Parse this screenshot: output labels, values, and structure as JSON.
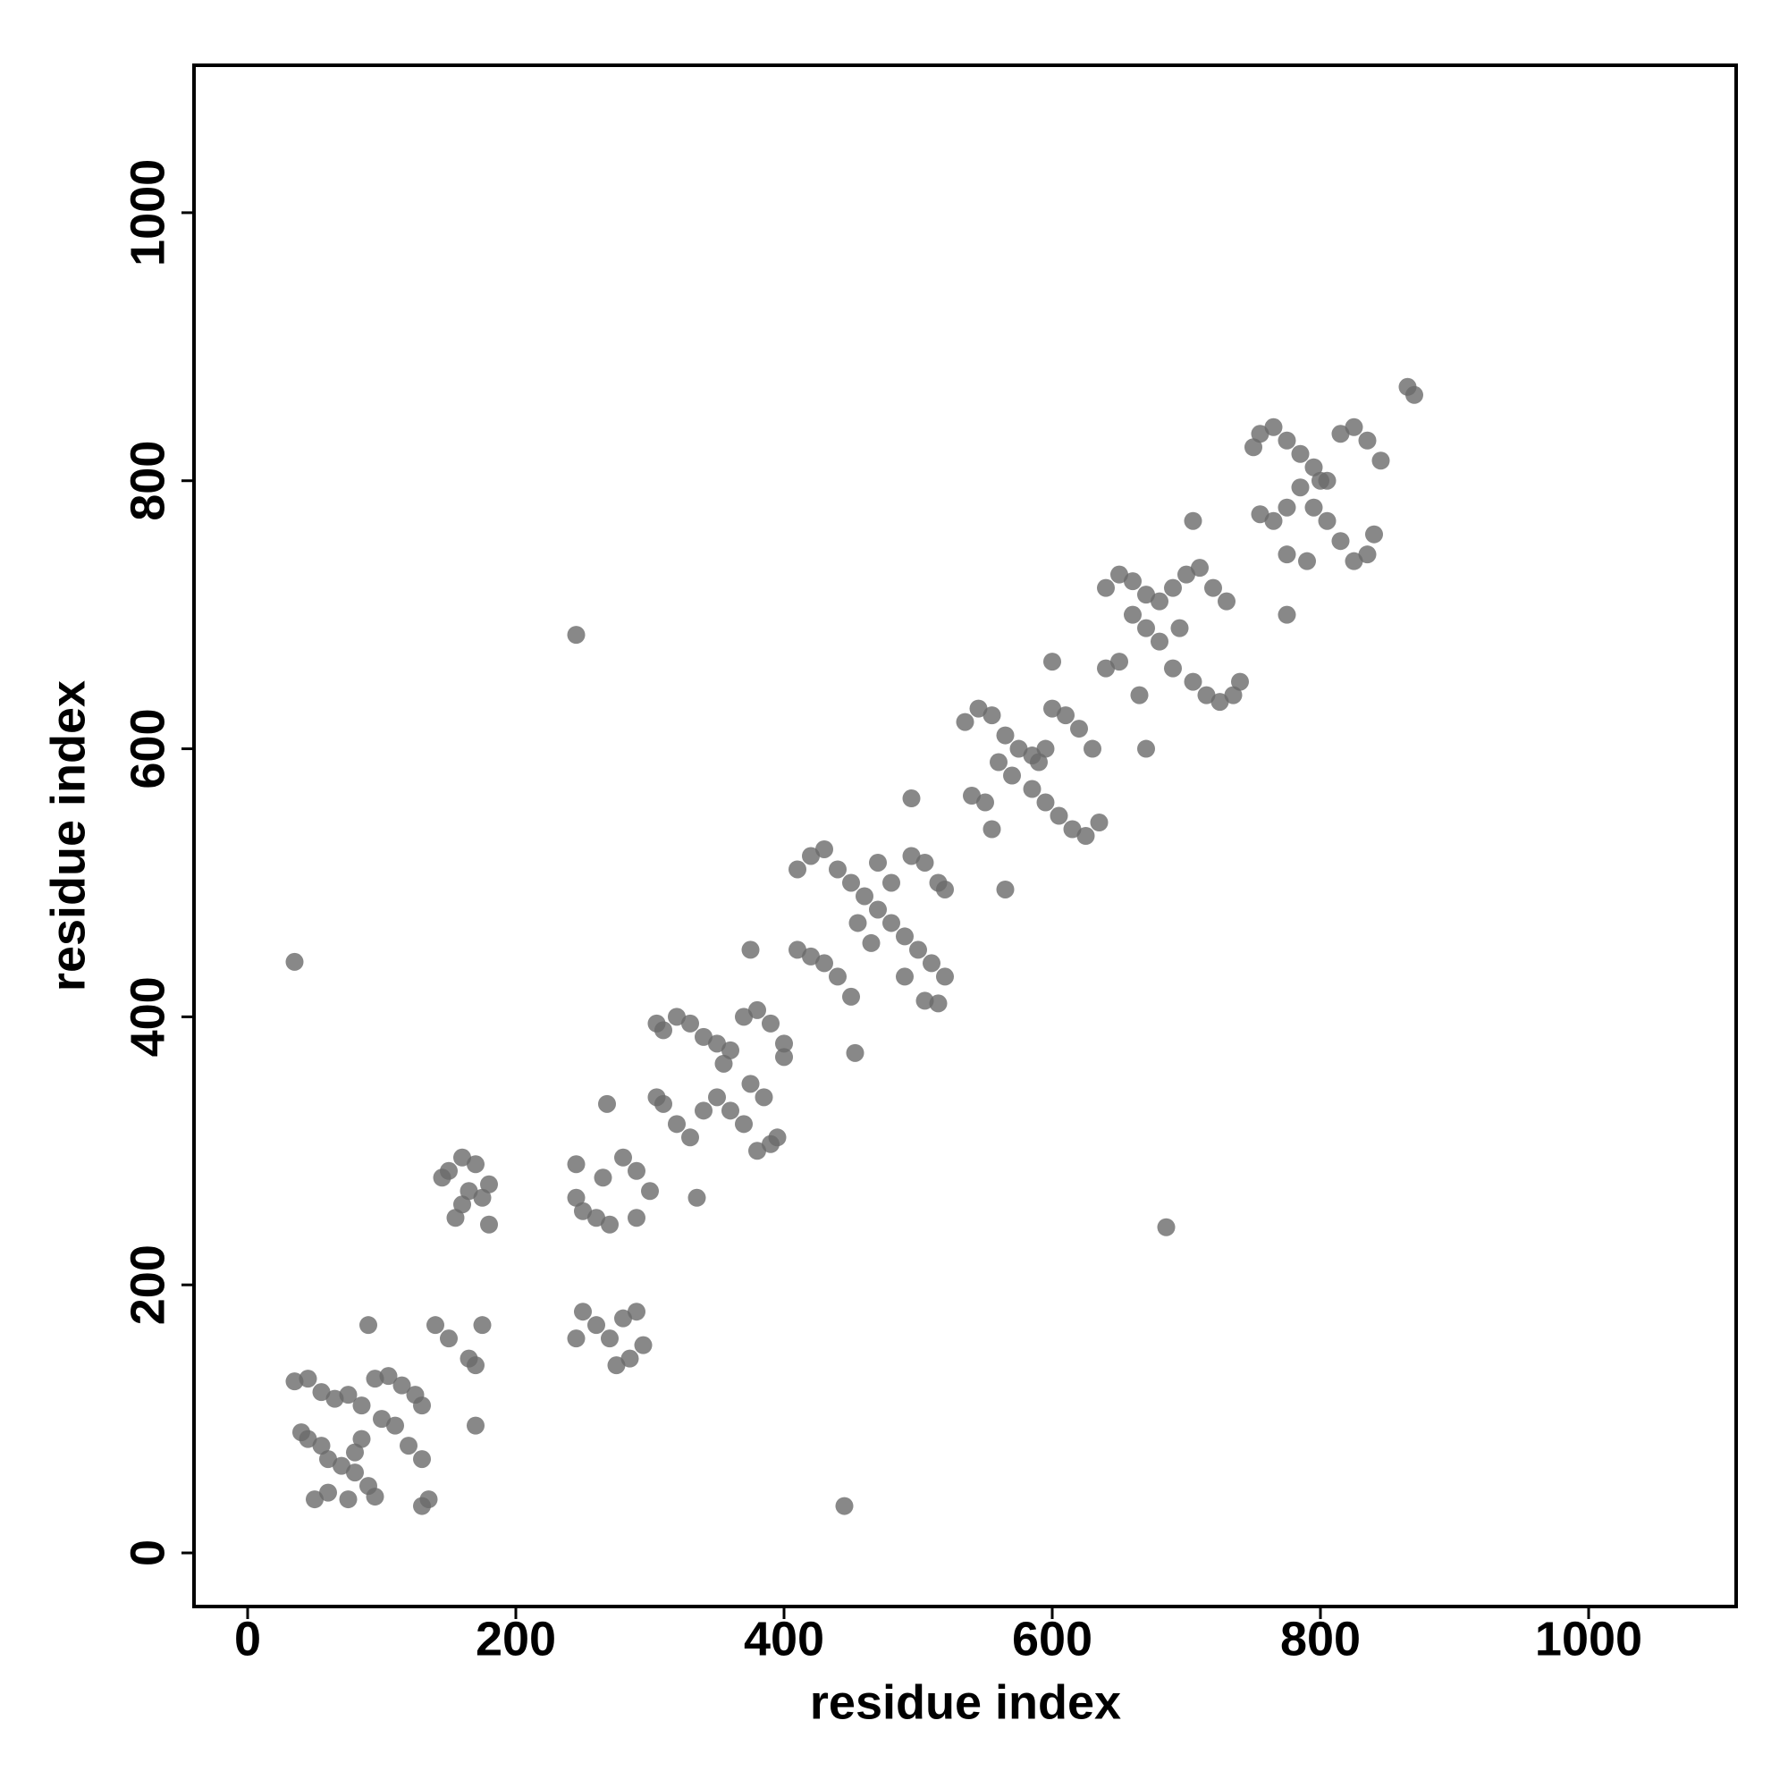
{
  "chart_data": {
    "type": "scatter",
    "x_label": "residue index",
    "y_label": "residue index",
    "xlim": [
      -40,
      1110
    ],
    "ylim": [
      -40,
      1110
    ],
    "xticks": [
      0,
      200,
      400,
      600,
      800,
      1000
    ],
    "yticks": [
      0,
      200,
      400,
      600,
      800,
      1000
    ],
    "color": "#6a6a6a",
    "x": [
      35,
      45,
      55,
      65,
      75,
      85,
      95,
      105,
      115,
      125,
      130,
      40,
      45,
      55,
      60,
      70,
      80,
      90,
      95,
      85,
      80,
      100,
      110,
      120,
      130,
      135,
      130,
      50,
      60,
      75,
      90,
      140,
      150,
      165,
      170,
      170,
      175,
      150,
      145,
      160,
      170,
      180,
      175,
      160,
      155,
      180,
      165,
      245,
      250,
      260,
      270,
      265,
      280,
      290,
      300,
      290,
      245,
      250,
      260,
      270,
      280,
      290,
      295,
      285,
      275,
      245,
      268,
      335,
      245,
      305,
      310,
      320,
      330,
      340,
      350,
      360,
      370,
      380,
      390,
      400,
      400,
      395,
      390,
      380,
      370,
      360,
      350,
      340,
      330,
      320,
      310,
      305,
      375,
      355,
      385,
      375,
      410,
      420,
      430,
      440,
      450,
      460,
      470,
      480,
      490,
      500,
      510,
      520,
      515,
      505,
      495,
      505,
      515,
      520,
      410,
      420,
      430,
      440,
      450,
      455,
      465,
      480,
      490,
      453,
      470,
      495,
      35,
      535,
      545,
      555,
      565,
      575,
      585,
      595,
      600,
      610,
      620,
      630,
      635,
      625,
      615,
      605,
      595,
      585,
      570,
      560,
      550,
      540,
      555,
      590,
      600,
      565,
      640,
      650,
      660,
      670,
      680,
      690,
      700,
      710,
      720,
      730,
      740,
      735,
      725,
      715,
      705,
      690,
      680,
      670,
      660,
      650,
      640,
      665,
      695,
      705,
      670,
      685,
      750,
      755,
      765,
      775,
      785,
      795,
      805,
      815,
      825,
      835,
      845,
      840,
      835,
      825,
      815,
      805,
      795,
      785,
      775,
      765,
      755,
      775,
      790,
      800,
      775,
      865,
      870,
      445
    ],
    "values": [
      128,
      130,
      120,
      115,
      118,
      110,
      130,
      132,
      125,
      118,
      110,
      90,
      85,
      80,
      70,
      65,
      60,
      50,
      42,
      85,
      75,
      100,
      95,
      80,
      70,
      40,
      35,
      40,
      45,
      40,
      170,
      170,
      160,
      145,
      140,
      95,
      170,
      285,
      280,
      295,
      290,
      275,
      265,
      260,
      250,
      245,
      270,
      265,
      255,
      250,
      245,
      280,
      295,
      285,
      270,
      250,
      290,
      180,
      170,
      160,
      175,
      180,
      155,
      145,
      140,
      160,
      335,
      265,
      685,
      395,
      390,
      400,
      395,
      385,
      380,
      375,
      400,
      405,
      395,
      380,
      370,
      310,
      305,
      300,
      320,
      330,
      340,
      330,
      310,
      320,
      335,
      340,
      350,
      365,
      340,
      450,
      510,
      520,
      525,
      510,
      500,
      490,
      480,
      470,
      460,
      450,
      440,
      430,
      410,
      412,
      520,
      515,
      500,
      495,
      450,
      445,
      440,
      430,
      415,
      470,
      455,
      500,
      430,
      373,
      515,
      563,
      441,
      620,
      630,
      625,
      610,
      600,
      595,
      600,
      630,
      625,
      615,
      600,
      545,
      535,
      540,
      550,
      560,
      570,
      580,
      590,
      560,
      565,
      540,
      590,
      665,
      495,
      720,
      730,
      725,
      715,
      710,
      720,
      730,
      735,
      720,
      710,
      650,
      640,
      635,
      640,
      650,
      660,
      680,
      690,
      700,
      665,
      660,
      640,
      690,
      770,
      600,
      243,
      825,
      835,
      840,
      830,
      820,
      810,
      800,
      835,
      840,
      830,
      815,
      760,
      745,
      740,
      755,
      770,
      780,
      795,
      780,
      770,
      775,
      745,
      740,
      800,
      700,
      870,
      864,
      35
    ]
  }
}
